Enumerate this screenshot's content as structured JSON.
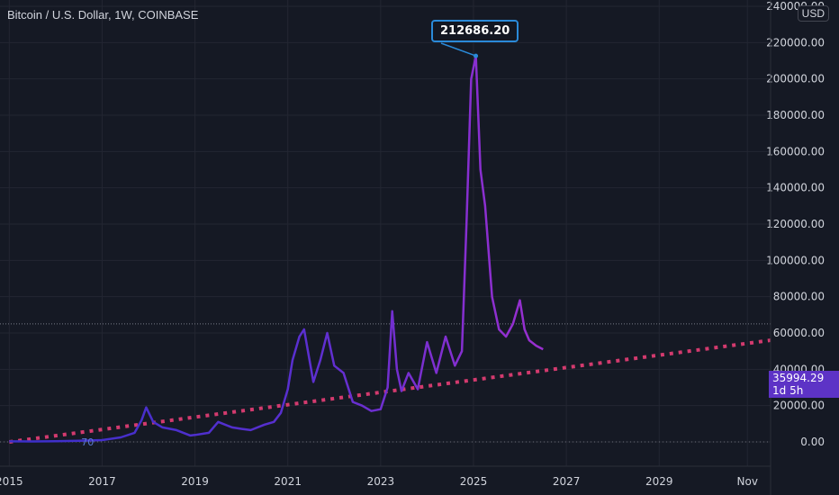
{
  "header": {
    "title": "Bitcoin / U.S. Dollar, 1W, COINBASE",
    "currency": "USD"
  },
  "callout": {
    "label": "212686.20"
  },
  "price_tag": {
    "value": "35994.29",
    "countdown": "1d 5h"
  },
  "colors": {
    "background": "#151924",
    "grid": "#232632",
    "price_line_early": "#3a2fc9",
    "price_line_late": "#9b2fd0",
    "trend_line": "#d33a6e",
    "callout_border": "#2a8ad9",
    "price_tag_bg": "#5d33c6",
    "axis_text": "#d1d4dc"
  },
  "chart_data": {
    "type": "line",
    "title": "Bitcoin / U.S. Dollar, 1W, COINBASE",
    "ylim": [
      -5000,
      240000
    ],
    "xlim": [
      2014.8,
      2031.4
    ],
    "y_ticks": [
      "0.00",
      "20000.00",
      "40000.00",
      "60000.00",
      "80000.00",
      "100000.00",
      "120000.00",
      "140000.00",
      "160000.00",
      "180000.00",
      "200000.00",
      "220000.00",
      "240000.00"
    ],
    "y_tick_values": [
      0,
      20000,
      40000,
      60000,
      80000,
      100000,
      120000,
      140000,
      160000,
      180000,
      200000,
      220000,
      240000
    ],
    "x_ticks": [
      {
        "x": 2015,
        "label": "2015"
      },
      {
        "x": 2017,
        "label": "2017"
      },
      {
        "x": 2019,
        "label": "2019"
      },
      {
        "x": 2021,
        "label": "2021"
      },
      {
        "x": 2023,
        "label": "2023"
      },
      {
        "x": 2025,
        "label": "2025"
      },
      {
        "x": 2027,
        "label": "2027"
      },
      {
        "x": 2029,
        "label": "2029"
      },
      {
        "x": 2030.9,
        "label": "Nov"
      }
    ],
    "grid": true,
    "horizontal_line": 65000,
    "annotations": [
      {
        "x": 2016.55,
        "y": 0,
        "text": "70"
      }
    ],
    "peak_marker": {
      "x": 2025.05,
      "y": 212686.2
    },
    "series": [
      {
        "style": "price",
        "x": [
          2015.0,
          2015.5,
          2016.0,
          2016.5,
          2017.0,
          2017.4,
          2017.7,
          2017.85,
          2017.95,
          2018.1,
          2018.3,
          2018.6,
          2018.9,
          2019.0,
          2019.3,
          2019.5,
          2019.8,
          2020.0,
          2020.2,
          2020.5,
          2020.7,
          2020.85,
          2021.0,
          2021.1,
          2021.25,
          2021.35,
          2021.55,
          2021.7,
          2021.85,
          2022.0,
          2022.2,
          2022.4,
          2022.6,
          2022.8,
          2023.0,
          2023.15,
          2023.25,
          2023.35,
          2023.45,
          2023.6,
          2023.8,
          2024.0,
          2024.2,
          2024.4,
          2024.6,
          2024.75,
          2024.85,
          2024.95,
          2025.05,
          2025.15,
          2025.25,
          2025.4,
          2025.55,
          2025.7,
          2025.85,
          2026.0,
          2026.1,
          2026.2,
          2026.35,
          2026.5
        ],
        "y": [
          300,
          250,
          400,
          650,
          1000,
          2500,
          5000,
          12000,
          19000,
          11000,
          8000,
          6500,
          3500,
          3800,
          5000,
          11000,
          8000,
          7200,
          6500,
          9500,
          11000,
          16000,
          29000,
          45000,
          58000,
          62000,
          33000,
          45000,
          60000,
          42000,
          38000,
          22000,
          20000,
          17000,
          18000,
          30000,
          72000,
          40000,
          28000,
          38000,
          29000,
          55000,
          38000,
          58000,
          42000,
          50000,
          120000,
          200000,
          212686,
          150000,
          130000,
          80000,
          62000,
          58000,
          65000,
          78000,
          62000,
          56000,
          53000,
          51000
        ]
      },
      {
        "style": "trend",
        "x": [
          2015.0,
          2031.4
        ],
        "y": [
          0,
          56000
        ]
      }
    ]
  }
}
